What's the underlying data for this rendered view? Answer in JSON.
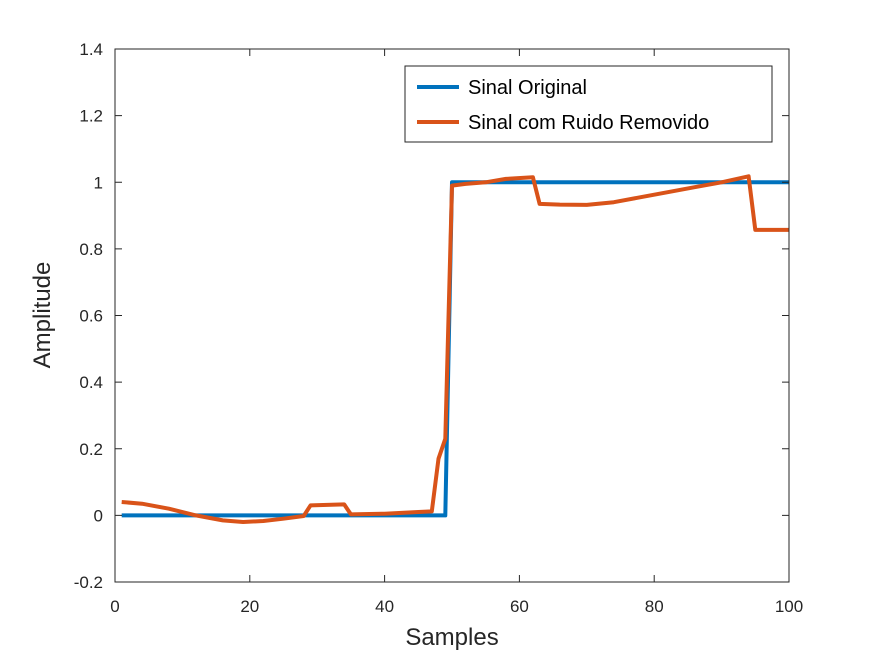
{
  "chart_data": {
    "type": "line",
    "xlabel": "Samples",
    "ylabel": "Amplitude",
    "xlim": [
      0,
      100
    ],
    "ylim": [
      -0.2,
      1.4
    ],
    "xticks": [
      "0",
      "20",
      "40",
      "60",
      "80",
      "100"
    ],
    "yticks": [
      "-0.2",
      "0",
      "0.2",
      "0.4",
      "0.6",
      "0.8",
      "1",
      "1.2",
      "1.4"
    ],
    "grid": false,
    "legend_position": "top-right",
    "series": [
      {
        "name": "Sinal Original",
        "color": "#0072BD",
        "x": [
          1,
          49,
          50,
          100
        ],
        "y": [
          0,
          0,
          1,
          1
        ]
      },
      {
        "name": "Sinal com Ruido Removido",
        "color": "#D95319",
        "x": [
          1,
          4,
          8,
          12,
          16,
          19,
          22,
          25,
          28,
          29,
          34,
          35,
          40,
          45,
          47,
          48,
          49,
          50,
          52,
          55,
          58,
          62,
          63,
          66,
          70,
          74,
          78,
          82,
          86,
          90,
          94,
          95,
          100
        ],
        "y": [
          0.04,
          0.035,
          0.02,
          0.0,
          -0.015,
          -0.02,
          -0.017,
          -0.01,
          -0.002,
          0.03,
          0.033,
          0.003,
          0.005,
          0.01,
          0.012,
          0.17,
          0.23,
          0.99,
          0.995,
          1.0,
          1.01,
          1.015,
          0.935,
          0.933,
          0.932,
          0.94,
          0.955,
          0.97,
          0.985,
          1.0,
          1.018,
          0.857,
          0.857
        ]
      }
    ]
  }
}
